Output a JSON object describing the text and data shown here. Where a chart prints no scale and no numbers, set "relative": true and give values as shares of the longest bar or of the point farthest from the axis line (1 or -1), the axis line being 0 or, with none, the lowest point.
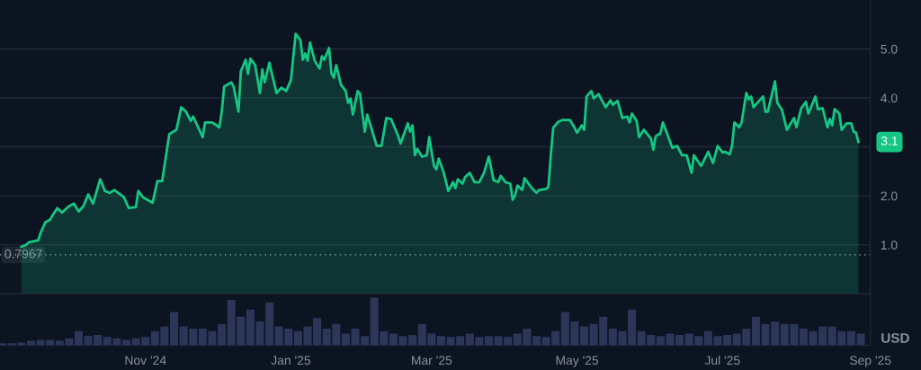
{
  "chart_data": [
    {
      "type": "area",
      "xlim": [
        "2024-09-01",
        "2025-09-01"
      ],
      "ylim": [
        0,
        6.0
      ],
      "yticks": [
        {
          "value": 1,
          "label": "1.0"
        },
        {
          "value": 2,
          "label": "2.0"
        },
        {
          "value": 3,
          "label": null
        },
        {
          "value": 4,
          "label": "4.0"
        },
        {
          "value": 5,
          "label": "5.0"
        }
      ],
      "grid": "y",
      "tick_labels": "y",
      "ref_lines": [
        {
          "axis": "y",
          "value": 0.7967,
          "label": "0.7967",
          "color": "#8a919e",
          "line_style": "dotted"
        }
      ],
      "annotations": [
        {
          "text": "3.1",
          "x": "2025-08-27",
          "y": 3.1
        }
      ],
      "series": [
        {
          "color": "#16c784",
          "x": [
            "2024-09-10",
            "2024-09-12",
            "2024-09-13",
            "2024-09-17",
            "2024-09-18",
            "2024-09-20",
            "2024-09-22",
            "2024-09-23",
            "2024-09-25",
            "2024-09-27",
            "2024-09-30",
            "2024-10-02",
            "2024-10-04",
            "2024-10-06",
            "2024-10-08",
            "2024-10-10",
            "2024-10-13",
            "2024-10-15",
            "2024-10-17",
            "2024-10-19",
            "2024-10-23",
            "2024-10-25",
            "2024-10-28",
            "2024-10-29",
            "2024-10-31",
            "2024-11-04",
            "2024-11-06",
            "2024-11-08",
            "2024-11-11",
            "2024-11-14",
            "2024-11-16",
            "2024-11-18",
            "2024-11-20",
            "2024-11-21",
            "2024-11-25",
            "2024-11-26",
            "2024-11-29",
            "2024-12-02",
            "2024-12-03",
            "2024-12-04",
            "2024-12-07",
            "2024-12-08",
            "2024-12-10",
            "2024-12-11",
            "2024-12-13",
            "2024-12-14",
            "2024-12-15",
            "2024-12-17",
            "2024-12-19",
            "2024-12-20",
            "2024-12-21",
            "2024-12-23",
            "2024-12-24",
            "2024-12-26",
            "2024-12-28",
            "2024-12-30",
            "2025-01-01",
            "2025-01-03",
            "2025-01-05",
            "2025-01-06",
            "2025-01-07",
            "2025-01-08",
            "2025-01-09",
            "2025-01-11",
            "2025-01-13",
            "2025-01-14",
            "2025-01-15",
            "2025-01-17",
            "2025-01-18",
            "2025-01-19",
            "2025-01-20",
            "2025-01-22",
            "2025-01-24",
            "2025-01-25",
            "2025-01-26",
            "2025-01-27",
            "2025-01-29",
            "2025-01-30",
            "2025-02-01",
            "2025-02-02",
            "2025-02-06",
            "2025-02-08",
            "2025-02-10",
            "2025-02-12",
            "2025-02-15",
            "2025-02-16",
            "2025-02-19",
            "2025-02-20",
            "2025-02-21",
            "2025-02-22",
            "2025-02-23",
            "2025-02-25",
            "2025-02-27",
            "2025-02-28",
            "2025-03-02",
            "2025-03-03",
            "2025-03-04",
            "2025-03-06",
            "2025-03-08",
            "2025-03-10",
            "2025-03-11",
            "2025-03-12",
            "2025-03-14",
            "2025-03-15",
            "2025-03-17",
            "2025-03-19",
            "2025-03-21",
            "2025-03-23",
            "2025-03-25",
            "2025-03-27",
            "2025-03-29",
            "2025-03-30",
            "2025-04-01",
            "2025-04-03",
            "2025-04-04",
            "2025-04-05",
            "2025-04-06",
            "2025-04-08",
            "2025-04-09",
            "2025-04-12",
            "2025-04-14",
            "2025-04-15",
            "2025-04-18",
            "2025-04-19",
            "2025-04-20",
            "2025-04-21",
            "2025-04-23",
            "2025-04-25",
            "2025-04-28",
            "2025-04-30",
            "2025-05-01",
            "2025-05-03",
            "2025-05-04",
            "2025-05-05",
            "2025-05-07",
            "2025-05-08",
            "2025-05-10",
            "2025-05-13",
            "2025-05-15",
            "2025-05-16",
            "2025-05-18",
            "2025-05-20",
            "2025-05-22",
            "2025-05-23",
            "2025-05-24",
            "2025-05-26",
            "2025-05-27",
            "2025-05-29",
            "2025-06-01",
            "2025-06-02",
            "2025-06-03",
            "2025-06-05",
            "2025-06-06",
            "2025-06-10",
            "2025-06-12",
            "2025-06-14",
            "2025-06-16",
            "2025-06-18",
            "2025-06-19",
            "2025-06-22",
            "2025-06-25",
            "2025-06-27",
            "2025-06-29",
            "2025-07-01",
            "2025-07-02",
            "2025-07-04",
            "2025-07-05",
            "2025-07-06",
            "2025-07-08",
            "2025-07-09",
            "2025-07-11",
            "2025-07-12",
            "2025-07-13",
            "2025-07-14",
            "2025-07-18",
            "2025-07-19",
            "2025-07-20",
            "2025-07-23",
            "2025-07-24",
            "2025-07-26",
            "2025-07-28",
            "2025-07-31",
            "2025-08-01",
            "2025-08-03",
            "2025-08-05",
            "2025-08-06",
            "2025-08-09",
            "2025-08-10",
            "2025-08-12",
            "2025-08-14",
            "2025-08-15",
            "2025-08-16",
            "2025-08-17",
            "2025-08-19",
            "2025-08-20",
            "2025-08-22",
            "2025-08-24",
            "2025-08-25",
            "2025-08-26",
            "2025-08-27"
          ],
          "values": [
            0.96,
            1.0,
            1.05,
            1.09,
            1.24,
            1.46,
            1.51,
            1.6,
            1.75,
            1.66,
            1.79,
            1.84,
            1.68,
            1.79,
            2.03,
            1.84,
            2.34,
            2.1,
            2.06,
            2.12,
            1.97,
            1.75,
            1.77,
            2.1,
            1.97,
            1.86,
            2.3,
            2.3,
            3.26,
            3.35,
            3.81,
            3.72,
            3.53,
            3.62,
            3.2,
            3.5,
            3.5,
            3.4,
            3.72,
            4.23,
            4.32,
            4.23,
            3.72,
            4.54,
            4.78,
            4.49,
            4.8,
            4.67,
            4.1,
            4.58,
            4.32,
            4.72,
            4.5,
            4.1,
            4.21,
            4.14,
            4.36,
            5.31,
            5.18,
            4.78,
            4.91,
            4.76,
            5.13,
            4.76,
            4.6,
            4.85,
            4.78,
            5.02,
            4.5,
            4.41,
            4.67,
            4.27,
            4.14,
            3.9,
            3.99,
            3.66,
            4.14,
            4.08,
            3.31,
            3.66,
            3.02,
            3.02,
            3.59,
            3.57,
            3.22,
            3.07,
            3.48,
            3.31,
            3.44,
            2.83,
            2.96,
            2.8,
            2.83,
            3.2,
            2.61,
            2.54,
            2.76,
            2.49,
            2.1,
            2.28,
            2.16,
            2.34,
            2.25,
            2.38,
            2.47,
            2.28,
            2.28,
            2.47,
            2.8,
            2.32,
            2.28,
            2.41,
            2.28,
            2.25,
            1.92,
            2.01,
            2.21,
            2.12,
            2.36,
            2.16,
            2.06,
            2.12,
            2.14,
            2.19,
            2.83,
            3.39,
            3.51,
            3.55,
            3.55,
            3.39,
            3.29,
            3.44,
            3.35,
            4.03,
            4.14,
            3.99,
            4.08,
            3.81,
            3.95,
            3.86,
            3.94,
            3.59,
            3.62,
            3.5,
            3.68,
            3.53,
            3.2,
            3.35,
            3.17,
            2.94,
            3.22,
            3.28,
            3.5,
            2.98,
            3.02,
            2.83,
            2.83,
            2.47,
            2.83,
            2.61,
            2.9,
            2.67,
            3.02,
            2.89,
            2.9,
            2.85,
            3.02,
            3.5,
            3.4,
            3.5,
            4.1,
            3.97,
            4.03,
            3.81,
            4.03,
            3.72,
            3.72,
            4.34,
            3.9,
            3.75,
            3.35,
            3.59,
            3.4,
            3.79,
            3.92,
            3.68,
            4.03,
            3.77,
            3.79,
            3.4,
            3.57,
            3.44,
            3.77,
            3.68,
            3.35,
            3.48,
            3.48,
            3.31,
            3.29,
            3.1
          ]
        }
      ]
    },
    {
      "type": "bar",
      "relative": true,
      "tick_labels": "x",
      "xlim": [
        "2024-09-01",
        "2025-09-01"
      ],
      "xticks": [
        {
          "value": "2024-11-01",
          "label": "Nov '24"
        },
        {
          "value": "2025-01-01",
          "label": "Jan '25"
        },
        {
          "value": "2025-03-01",
          "label": "Mar '25"
        },
        {
          "value": "2025-05-01",
          "label": "May '25"
        },
        {
          "value": "2025-07-01",
          "label": "Jul '25"
        },
        {
          "value": "2025-09-01",
          "label": "Sep '25"
        }
      ],
      "annotations": [
        "USD"
      ],
      "series": [
        {
          "color": "#2c3659",
          "x": [
            "2024-09-02",
            "2024-09-06",
            "2024-09-10",
            "2024-09-14",
            "2024-09-18",
            "2024-09-22",
            "2024-09-26",
            "2024-09-30",
            "2024-10-04",
            "2024-10-08",
            "2024-10-12",
            "2024-10-16",
            "2024-10-20",
            "2024-10-24",
            "2024-10-28",
            "2024-11-01",
            "2024-11-05",
            "2024-11-09",
            "2024-11-13",
            "2024-11-17",
            "2024-11-21",
            "2024-11-25",
            "2024-11-29",
            "2024-12-03",
            "2024-12-07",
            "2024-12-11",
            "2024-12-15",
            "2024-12-19",
            "2024-12-23",
            "2024-12-27",
            "2024-12-31",
            "2025-01-04",
            "2025-01-08",
            "2025-01-12",
            "2025-01-16",
            "2025-01-20",
            "2025-01-24",
            "2025-01-28",
            "2025-02-01",
            "2025-02-05",
            "2025-02-09",
            "2025-02-13",
            "2025-02-17",
            "2025-02-21",
            "2025-02-25",
            "2025-03-01",
            "2025-03-05",
            "2025-03-09",
            "2025-03-13",
            "2025-03-17",
            "2025-03-21",
            "2025-03-25",
            "2025-03-29",
            "2025-04-02",
            "2025-04-06",
            "2025-04-10",
            "2025-04-14",
            "2025-04-18",
            "2025-04-22",
            "2025-04-26",
            "2025-04-30",
            "2025-05-04",
            "2025-05-08",
            "2025-05-12",
            "2025-05-16",
            "2025-05-20",
            "2025-05-24",
            "2025-05-28",
            "2025-06-01",
            "2025-06-05",
            "2025-06-09",
            "2025-06-13",
            "2025-06-17",
            "2025-06-21",
            "2025-06-25",
            "2025-06-29",
            "2025-07-03",
            "2025-07-07",
            "2025-07-11",
            "2025-07-15",
            "2025-07-19",
            "2025-07-23",
            "2025-07-27",
            "2025-07-31",
            "2025-08-04",
            "2025-08-08",
            "2025-08-12",
            "2025-08-16",
            "2025-08-20",
            "2025-08-24",
            "2025-08-28"
          ],
          "values": [
            0.05,
            0.05,
            0.06,
            0.1,
            0.12,
            0.12,
            0.1,
            0.15,
            0.3,
            0.2,
            0.22,
            0.18,
            0.15,
            0.12,
            0.15,
            0.18,
            0.3,
            0.4,
            0.7,
            0.4,
            0.35,
            0.35,
            0.3,
            0.45,
            0.95,
            0.6,
            0.75,
            0.5,
            0.9,
            0.4,
            0.35,
            0.3,
            0.4,
            0.57,
            0.35,
            0.45,
            0.25,
            0.35,
            0.2,
            1.0,
            0.3,
            0.25,
            0.2,
            0.22,
            0.45,
            0.25,
            0.2,
            0.18,
            0.2,
            0.25,
            0.18,
            0.2,
            0.2,
            0.18,
            0.25,
            0.35,
            0.2,
            0.18,
            0.3,
            0.7,
            0.5,
            0.4,
            0.45,
            0.6,
            0.35,
            0.3,
            0.75,
            0.3,
            0.22,
            0.2,
            0.25,
            0.22,
            0.25,
            0.2,
            0.3,
            0.2,
            0.22,
            0.25,
            0.35,
            0.6,
            0.45,
            0.5,
            0.45,
            0.45,
            0.35,
            0.3,
            0.4,
            0.4,
            0.3,
            0.3,
            0.25
          ]
        }
      ]
    }
  ]
}
